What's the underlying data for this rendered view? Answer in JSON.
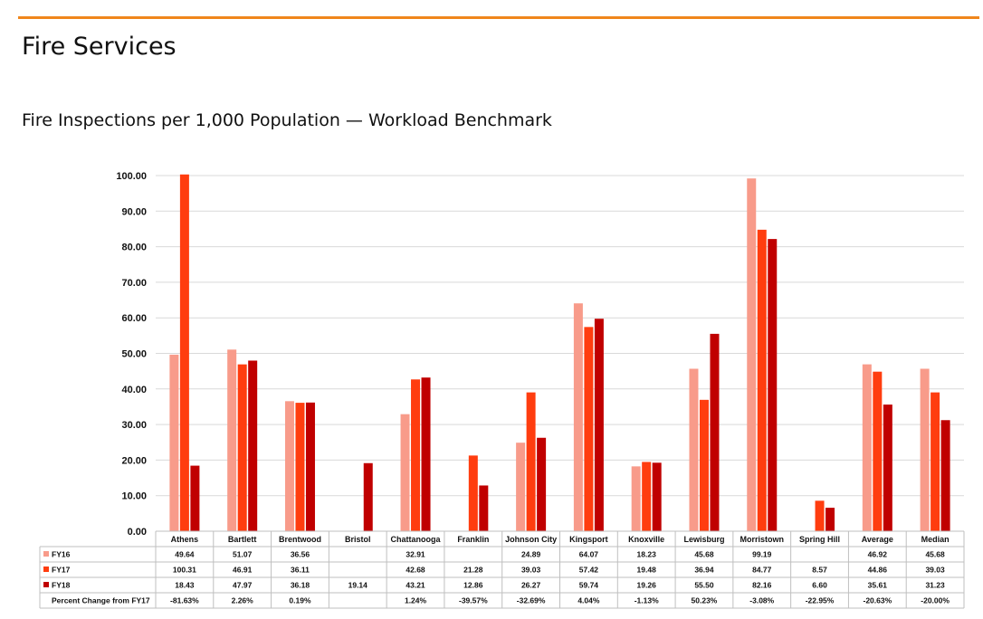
{
  "header": {
    "title": "Fire Services",
    "subtitle": "Fire Inspections per 1,000 Population — Workload Benchmark"
  },
  "colors": {
    "accent_bar": "#f0861b",
    "FY16": "#f89b8a",
    "FY17": "#ff3d0f",
    "FY18": "#c00000"
  },
  "chart_data": {
    "type": "bar",
    "title": "",
    "xlabel": "",
    "ylabel": "",
    "ylim": [
      0,
      100
    ],
    "yticks": [
      "0.00",
      "10.00",
      "20.00",
      "30.00",
      "40.00",
      "50.00",
      "60.00",
      "70.00",
      "80.00",
      "90.00",
      "100.00"
    ],
    "grid": true,
    "legend": "data table below chart",
    "categories": [
      "Athens",
      "Bartlett",
      "Brentwood",
      "Bristol",
      "Chattanooga",
      "Franklin",
      "Johnson City",
      "Kingsport",
      "Knoxville",
      "Lewisburg",
      "Morristown",
      "Spring Hill",
      "Average",
      "Median"
    ],
    "series": [
      {
        "name": "FY16",
        "values": [
          49.64,
          51.07,
          36.56,
          null,
          32.91,
          null,
          24.89,
          64.07,
          18.23,
          45.68,
          99.19,
          null,
          46.92,
          45.68
        ]
      },
      {
        "name": "FY17",
        "values": [
          100.31,
          46.91,
          36.11,
          null,
          42.68,
          21.28,
          39.03,
          57.42,
          19.48,
          36.94,
          84.77,
          8.57,
          44.86,
          39.03
        ]
      },
      {
        "name": "FY18",
        "values": [
          18.43,
          47.97,
          36.18,
          19.14,
          43.21,
          12.86,
          26.27,
          59.74,
          19.26,
          55.5,
          82.16,
          6.6,
          35.61,
          31.23
        ]
      }
    ],
    "table": {
      "rows": [
        {
          "label": "FY16",
          "cells": [
            "49.64",
            "51.07",
            "36.56",
            "",
            "32.91",
            "",
            "24.89",
            "64.07",
            "18.23",
            "45.68",
            "99.19",
            "",
            "46.92",
            "45.68"
          ]
        },
        {
          "label": "FY17",
          "cells": [
            "100.31",
            "46.91",
            "36.11",
            "",
            "42.68",
            "21.28",
            "39.03",
            "57.42",
            "19.48",
            "36.94",
            "84.77",
            "8.57",
            "44.86",
            "39.03"
          ]
        },
        {
          "label": "FY18",
          "cells": [
            "18.43",
            "47.97",
            "36.18",
            "19.14",
            "43.21",
            "12.86",
            "26.27",
            "59.74",
            "19.26",
            "55.50",
            "82.16",
            "6.60",
            "35.61",
            "31.23"
          ]
        },
        {
          "label": "Percent Change from FY17",
          "cells": [
            "-81.63%",
            "2.26%",
            "0.19%",
            "",
            "1.24%",
            "-39.57%",
            "-32.69%",
            "4.04%",
            "-1.13%",
            "50.23%",
            "-3.08%",
            "-22.95%",
            "-20.63%",
            "-20.00%"
          ]
        }
      ]
    }
  }
}
